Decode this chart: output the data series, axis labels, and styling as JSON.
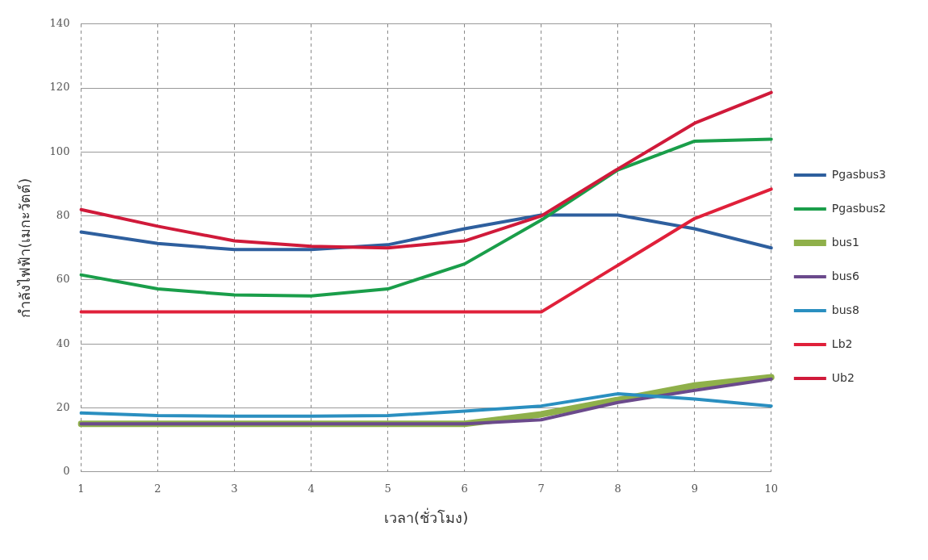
{
  "chart_data": {
    "type": "line",
    "xlabel": "เวลา(ชั่วโมง)",
    "ylabel": "กำลังไฟฟ้า(เมกะวัตต์)",
    "categories": [
      "1",
      "2",
      "3",
      "4",
      "5",
      "6",
      "7",
      "8",
      "9",
      "10"
    ],
    "ylim": [
      0,
      140
    ],
    "yticks": [
      0,
      20,
      40,
      60,
      80,
      100,
      120,
      140
    ],
    "grid": true,
    "legend": "right",
    "marker": "none",
    "line_style": "solid",
    "series": [
      {
        "name": "Pgasbus3",
        "color": "#2e5f9e",
        "values": [
          75,
          71.4,
          69.5,
          69.5,
          71,
          76,
          80.3,
          80.3,
          76,
          70
        ]
      },
      {
        "name": "Pgasbus2",
        "color": "#1a9e4a",
        "values": [
          61.6,
          57.2,
          55.3,
          55,
          57.2,
          65,
          78.7,
          94.4,
          103.4,
          104
        ]
      },
      {
        "name": "bus1",
        "color": "#8fb04a",
        "values": [
          15,
          15,
          15,
          15,
          15,
          15,
          18,
          22.5,
          27,
          29.6
        ]
      },
      {
        "name": "bus6",
        "color": "#6b4a8c",
        "values": [
          15,
          15,
          15,
          15,
          15,
          15,
          16.3,
          21.7,
          25.5,
          29
        ]
      },
      {
        "name": "bus8",
        "color": "#2a8fc0",
        "values": [
          18.4,
          17.6,
          17.4,
          17.4,
          17.6,
          19,
          20.6,
          24.4,
          22.8,
          20.6
        ]
      },
      {
        "name": "Lb2",
        "color": "#e0203a",
        "values": [
          50,
          50,
          50,
          50,
          50,
          50,
          50,
          64.6,
          79.2,
          88.4
        ]
      },
      {
        "name": "Ub2",
        "color": "#d01a3a",
        "values": [
          82,
          76.8,
          72.2,
          70.5,
          70,
          72.2,
          80,
          94.7,
          109,
          118.6
        ]
      }
    ]
  }
}
